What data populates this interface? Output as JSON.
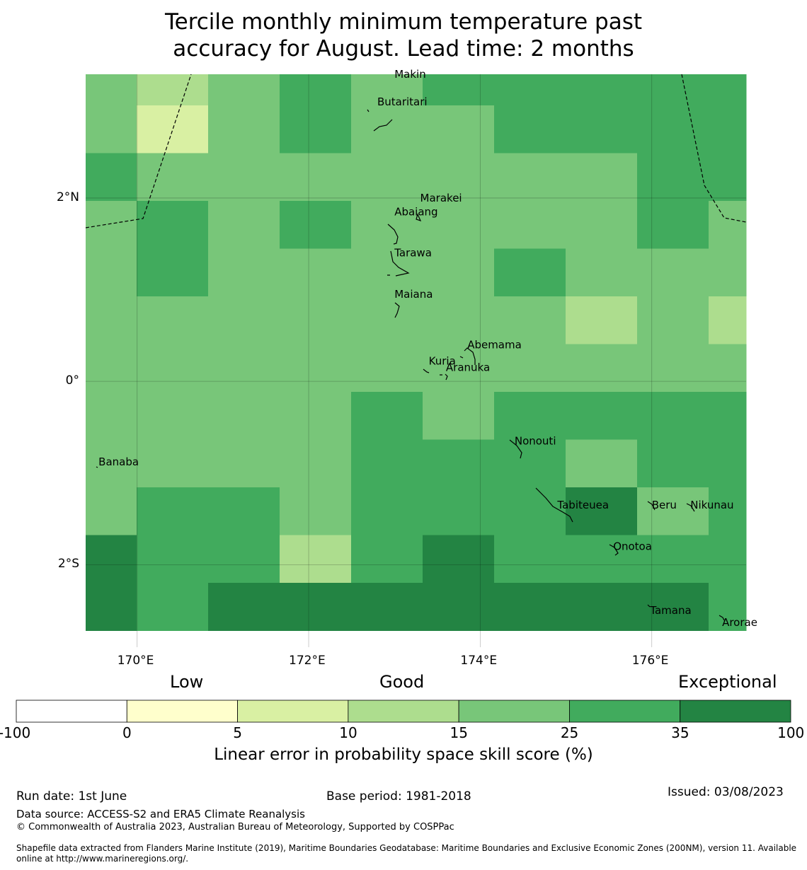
{
  "title_line1": "Tercile monthly minimum temperature past",
  "title_line2": "accuracy for August. Lead time: 2 months",
  "map": {
    "lon_range": [
      169.4,
      177.1
    ],
    "lat_range": [
      -2.9,
      3.35
    ],
    "lon_ticks": [
      {
        "value": 170,
        "label": "170°E"
      },
      {
        "value": 172,
        "label": "172°E"
      },
      {
        "value": 174,
        "label": "174°E"
      },
      {
        "value": 176,
        "label": "176°E"
      }
    ],
    "lat_ticks": [
      {
        "value": 2,
        "label": "2°N"
      },
      {
        "value": 0,
        "label": "0°"
      },
      {
        "value": -2,
        "label": "2°S"
      }
    ],
    "grid_cols": 10,
    "grid_rows": 12,
    "cell_levels": [
      [
        4,
        3,
        4,
        5,
        4,
        5,
        5,
        5,
        5,
        5
      ],
      [
        4,
        2,
        4,
        5,
        4,
        4,
        5,
        5,
        5,
        5
      ],
      [
        5,
        4,
        4,
        4,
        4,
        4,
        4,
        4,
        5,
        5
      ],
      [
        4,
        5,
        4,
        5,
        4,
        4,
        4,
        4,
        5,
        4
      ],
      [
        4,
        5,
        4,
        4,
        4,
        4,
        5,
        4,
        4,
        4
      ],
      [
        4,
        4,
        4,
        4,
        4,
        4,
        4,
        3,
        4,
        3
      ],
      [
        4,
        4,
        4,
        4,
        4,
        4,
        4,
        4,
        4,
        4
      ],
      [
        4,
        4,
        4,
        4,
        5,
        4,
        5,
        5,
        5,
        5
      ],
      [
        4,
        4,
        4,
        4,
        5,
        5,
        5,
        4,
        5,
        5
      ],
      [
        4,
        5,
        5,
        4,
        5,
        5,
        5,
        6,
        4,
        5
      ],
      [
        6,
        5,
        5,
        3,
        5,
        6,
        5,
        5,
        5,
        5
      ],
      [
        6,
        5,
        6,
        6,
        6,
        6,
        6,
        6,
        6,
        5
      ]
    ],
    "islands": [
      {
        "name": "Makin",
        "lon": 173.0,
        "lat": 3.35
      },
      {
        "name": "Butaritari",
        "lon": 172.8,
        "lat": 3.05
      },
      {
        "name": "Marakei",
        "lon": 173.3,
        "lat": 2.0
      },
      {
        "name": "Abaiang",
        "lon": 173.0,
        "lat": 1.85
      },
      {
        "name": "Tarawa",
        "lon": 173.0,
        "lat": 1.4
      },
      {
        "name": "Maiana",
        "lon": 173.0,
        "lat": 0.95
      },
      {
        "name": "Abemama",
        "lon": 173.85,
        "lat": 0.4
      },
      {
        "name": "Kuria",
        "lon": 173.4,
        "lat": 0.22
      },
      {
        "name": "Aranuka",
        "lon": 173.6,
        "lat": 0.15
      },
      {
        "name": "Nonouti",
        "lon": 174.4,
        "lat": -0.65
      },
      {
        "name": "Banaba",
        "lon": 169.55,
        "lat": -0.88
      },
      {
        "name": "Tabiteuea",
        "lon": 174.9,
        "lat": -1.35
      },
      {
        "name": "Beru",
        "lon": 176.0,
        "lat": -1.35
      },
      {
        "name": "Nikunau",
        "lon": 176.45,
        "lat": -1.35
      },
      {
        "name": "Onotoa",
        "lon": 175.55,
        "lat": -1.8
      },
      {
        "name": "Tamana",
        "lon": 175.98,
        "lat": -2.5
      },
      {
        "name": "Arorae",
        "lon": 176.82,
        "lat": -2.63
      }
    ]
  },
  "legend": {
    "categories": [
      "Low",
      "Good",
      "Exceptional"
    ],
    "bins": [
      "-100",
      "0",
      "5",
      "10",
      "15",
      "25",
      "35",
      "100"
    ],
    "colors": [
      "#ffffff",
      "#ffffcc",
      "#d9f0a3",
      "#addd8e",
      "#78c679",
      "#41ab5d",
      "#238443"
    ],
    "label": "Linear error in probability space skill score (%)"
  },
  "footer": {
    "run_date": "Run date: 1st June",
    "base_period": "Base period: 1981-2018",
    "issued": "Issued: 03/08/2023",
    "data_source": "Data source: ACCESS-S2 and ERA5 Climate Reanalysis",
    "copyright": "© Commonwealth of Australia 2023, Australian Bureau of Meteorology, Supported by COSPPac",
    "shapefile": "Shapefile data extracted from Flanders Marine Institute (2019), Maritime Boundaries Geodatabase: Maritime Boundaries and Exclusive Economic Zones (200NM), version 11. Available online at http://www.marineregions.org/."
  }
}
